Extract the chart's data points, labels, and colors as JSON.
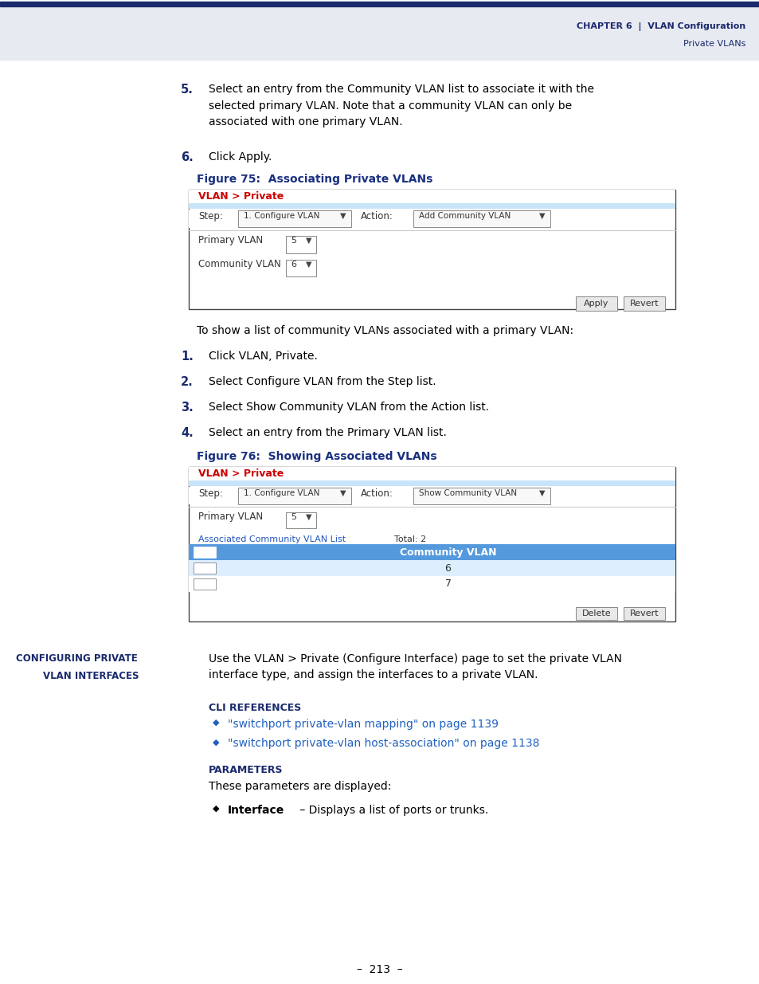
{
  "page_bg": "#ffffff",
  "header_bg": "#e8eaf2",
  "header_bar_color": "#1a2a6c",
  "header_text_color": "#1a2a6c",
  "header_section_color": "#4060c0",
  "body_text_color": "#000000",
  "numbered_bold_color": "#1a2a6c",
  "figure_label_color": "#1a3080",
  "link_color": "#2060c0",
  "fig75_title": "Figure 75:  Associating Private VLANs",
  "fig76_title": "Figure 76:  Showing Associated VLANs",
  "panel_border": "#444444",
  "panel_header_bg": "#c8e4f8",
  "panel_header_red": "#cc0000",
  "panel_table_header_bg": "#5599dd",
  "panel_table_header_text": "#ffffff",
  "panel_table_row1_bg": "#ddeeff",
  "panel_link_color": "#2255bb",
  "dropdown_bg": "#f8f8f8",
  "dropdown_border": "#888888",
  "button_bg": "#e8e8e8",
  "button_border": "#888888",
  "separator_color": "#cccccc",
  "footer_text": "–  213  –",
  "cli_links": [
    "\"switchport private-vlan mapping\" on page 1139",
    "\"switchport private-vlan host-association\" on page 1138"
  ]
}
